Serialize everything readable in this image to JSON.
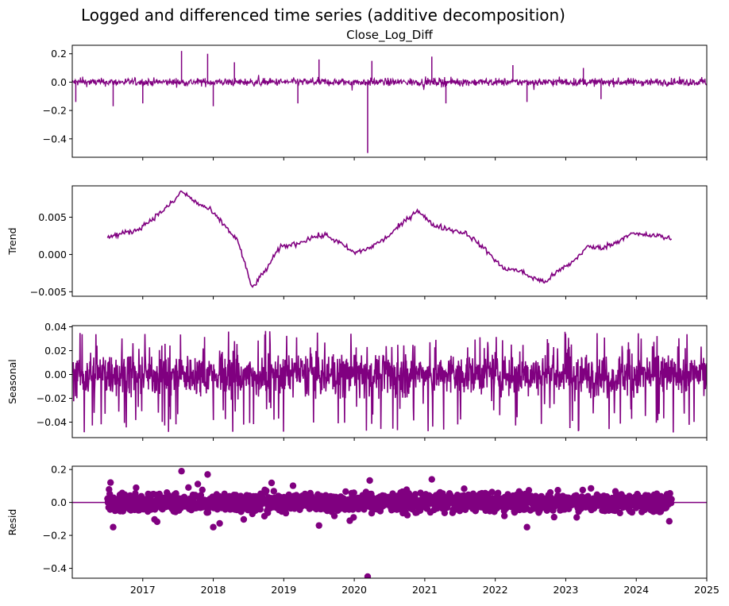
{
  "suptitle": "Logged and differenced time series (additive decomposition)",
  "chart_data": [
    {
      "type": "line",
      "title": "Close_Log_Diff",
      "ylabel": "",
      "xlim": [
        2016.0,
        2025.0
      ],
      "ylim": [
        -0.53,
        0.26
      ],
      "yticks": [
        -0.4,
        -0.2,
        0.0,
        0.2
      ],
      "ytick_labels": [
        "−0.4",
        "−0.2",
        "0.0",
        "0.2"
      ],
      "color": "#800080",
      "x_start": 2016.0,
      "x_end": 2025.0,
      "noise_amplitude": 0.03,
      "spikes": [
        {
          "x": 2016.05,
          "y": -0.14
        },
        {
          "x": 2016.58,
          "y": -0.17
        },
        {
          "x": 2017.0,
          "y": -0.15
        },
        {
          "x": 2017.55,
          "y": 0.22
        },
        {
          "x": 2017.92,
          "y": 0.2
        },
        {
          "x": 2018.0,
          "y": -0.17
        },
        {
          "x": 2018.3,
          "y": 0.14
        },
        {
          "x": 2019.2,
          "y": -0.15
        },
        {
          "x": 2019.5,
          "y": 0.16
        },
        {
          "x": 2020.19,
          "y": -0.5
        },
        {
          "x": 2020.25,
          "y": 0.15
        },
        {
          "x": 2021.1,
          "y": 0.18
        },
        {
          "x": 2021.3,
          "y": -0.15
        },
        {
          "x": 2022.25,
          "y": 0.12
        },
        {
          "x": 2022.45,
          "y": -0.14
        },
        {
          "x": 2023.25,
          "y": 0.1
        },
        {
          "x": 2023.5,
          "y": -0.12
        }
      ]
    },
    {
      "type": "line",
      "title": "",
      "ylabel": "Trend",
      "xlim": [
        2016.0,
        2025.0
      ],
      "ylim": [
        -0.0056,
        0.0092
      ],
      "yticks": [
        -0.005,
        0.0,
        0.005
      ],
      "ytick_labels": [
        "−0.005",
        "0.000",
        "0.005"
      ],
      "color": "#800080",
      "x": [
        2016.5,
        2016.7,
        2016.9,
        2017.1,
        2017.3,
        2017.45,
        2017.55,
        2017.75,
        2017.95,
        2018.15,
        2018.35,
        2018.55,
        2018.75,
        2018.95,
        2019.2,
        2019.4,
        2019.6,
        2019.8,
        2020.0,
        2020.2,
        2020.45,
        2020.7,
        2020.9,
        2021.1,
        2021.3,
        2021.6,
        2021.9,
        2022.1,
        2022.35,
        2022.5,
        2022.7,
        2022.9,
        2023.1,
        2023.3,
        2023.5,
        2023.7,
        2023.9,
        2024.1,
        2024.3,
        2024.5
      ],
      "y": [
        0.0023,
        0.0028,
        0.0032,
        0.0045,
        0.006,
        0.0072,
        0.0085,
        0.007,
        0.006,
        0.004,
        0.0018,
        -0.0045,
        -0.002,
        0.001,
        0.0015,
        0.0023,
        0.0026,
        0.0015,
        0.0002,
        0.0008,
        0.0022,
        0.0043,
        0.006,
        0.004,
        0.0035,
        0.0028,
        0.0003,
        -0.0018,
        -0.0022,
        -0.003,
        -0.0037,
        -0.0022,
        -0.001,
        0.001,
        0.0009,
        0.0015,
        0.0028,
        0.0026,
        0.0025,
        0.0021
      ]
    },
    {
      "type": "line",
      "title": "",
      "ylabel": "Seasonal",
      "xlim": [
        2016.0,
        2025.0
      ],
      "ylim": [
        -0.053,
        0.041
      ],
      "yticks": [
        -0.04,
        -0.02,
        0.0,
        0.02,
        0.04
      ],
      "ytick_labels": [
        "−0.04",
        "−0.02",
        "0.00",
        "0.02",
        "0.04"
      ],
      "color": "#800080",
      "x_start": 2016.0,
      "x_end": 2025.0,
      "amplitude_range": [
        -0.049,
        0.037
      ]
    },
    {
      "type": "scatter",
      "title": "",
      "ylabel": "Resid",
      "xlim": [
        2016.0,
        2025.0
      ],
      "ylim": [
        -0.46,
        0.22
      ],
      "yticks": [
        -0.4,
        -0.2,
        0.0,
        0.2
      ],
      "ytick_labels": [
        "−0.4",
        "−0.2",
        "0.0",
        "0.2"
      ],
      "xticks": [
        2017,
        2018,
        2019,
        2020,
        2021,
        2022,
        2023,
        2024,
        2025
      ],
      "xtick_labels": [
        "2017",
        "2018",
        "2019",
        "2020",
        "2021",
        "2022",
        "2023",
        "2024",
        "2025"
      ],
      "color": "#800080",
      "x_start": 2016.5,
      "x_end": 2024.5,
      "baseline": 0.0,
      "notable_points": [
        {
          "x": 2020.19,
          "y": -0.45
        },
        {
          "x": 2017.55,
          "y": 0.19
        },
        {
          "x": 2017.92,
          "y": 0.17
        },
        {
          "x": 2021.1,
          "y": 0.14
        },
        {
          "x": 2016.58,
          "y": -0.15
        },
        {
          "x": 2018.0,
          "y": -0.15
        },
        {
          "x": 2022.45,
          "y": -0.15
        },
        {
          "x": 2019.5,
          "y": -0.14
        }
      ]
    }
  ]
}
